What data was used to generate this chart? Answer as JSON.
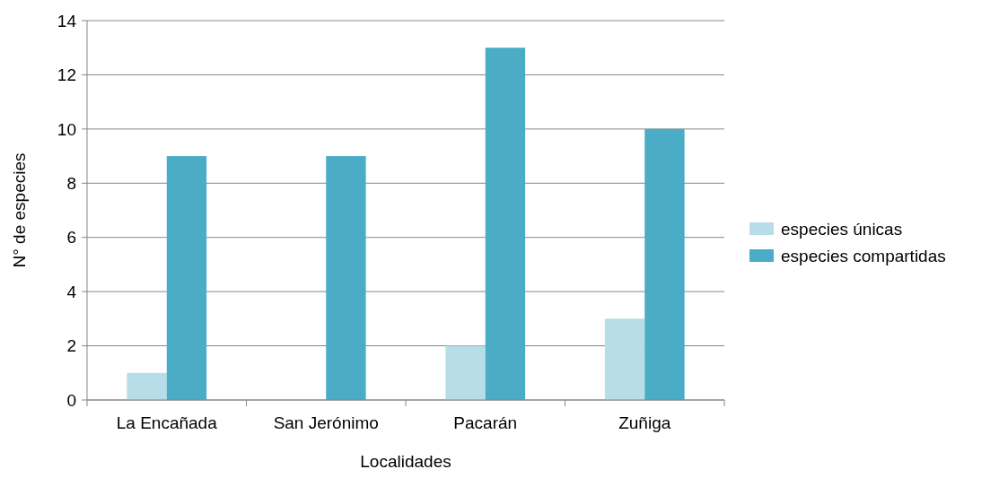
{
  "chart_data": {
    "type": "bar",
    "xlabel": "Localidades",
    "ylabel": "N° de especies",
    "categories": [
      "La Encañada",
      "San Jerónimo",
      "Pacarán",
      "Zuñiga"
    ],
    "series": [
      {
        "name": "especies únicas",
        "color": "#b7dde8",
        "values": [
          1,
          0,
          2,
          3
        ]
      },
      {
        "name": "especies compartidas",
        "color": "#4bacc6",
        "values": [
          9,
          9,
          13,
          10
        ]
      }
    ],
    "ylim": [
      0,
      14
    ],
    "yticks": [
      0,
      2,
      4,
      6,
      8,
      10,
      12,
      14
    ],
    "grid": "y",
    "legend": "right"
  }
}
